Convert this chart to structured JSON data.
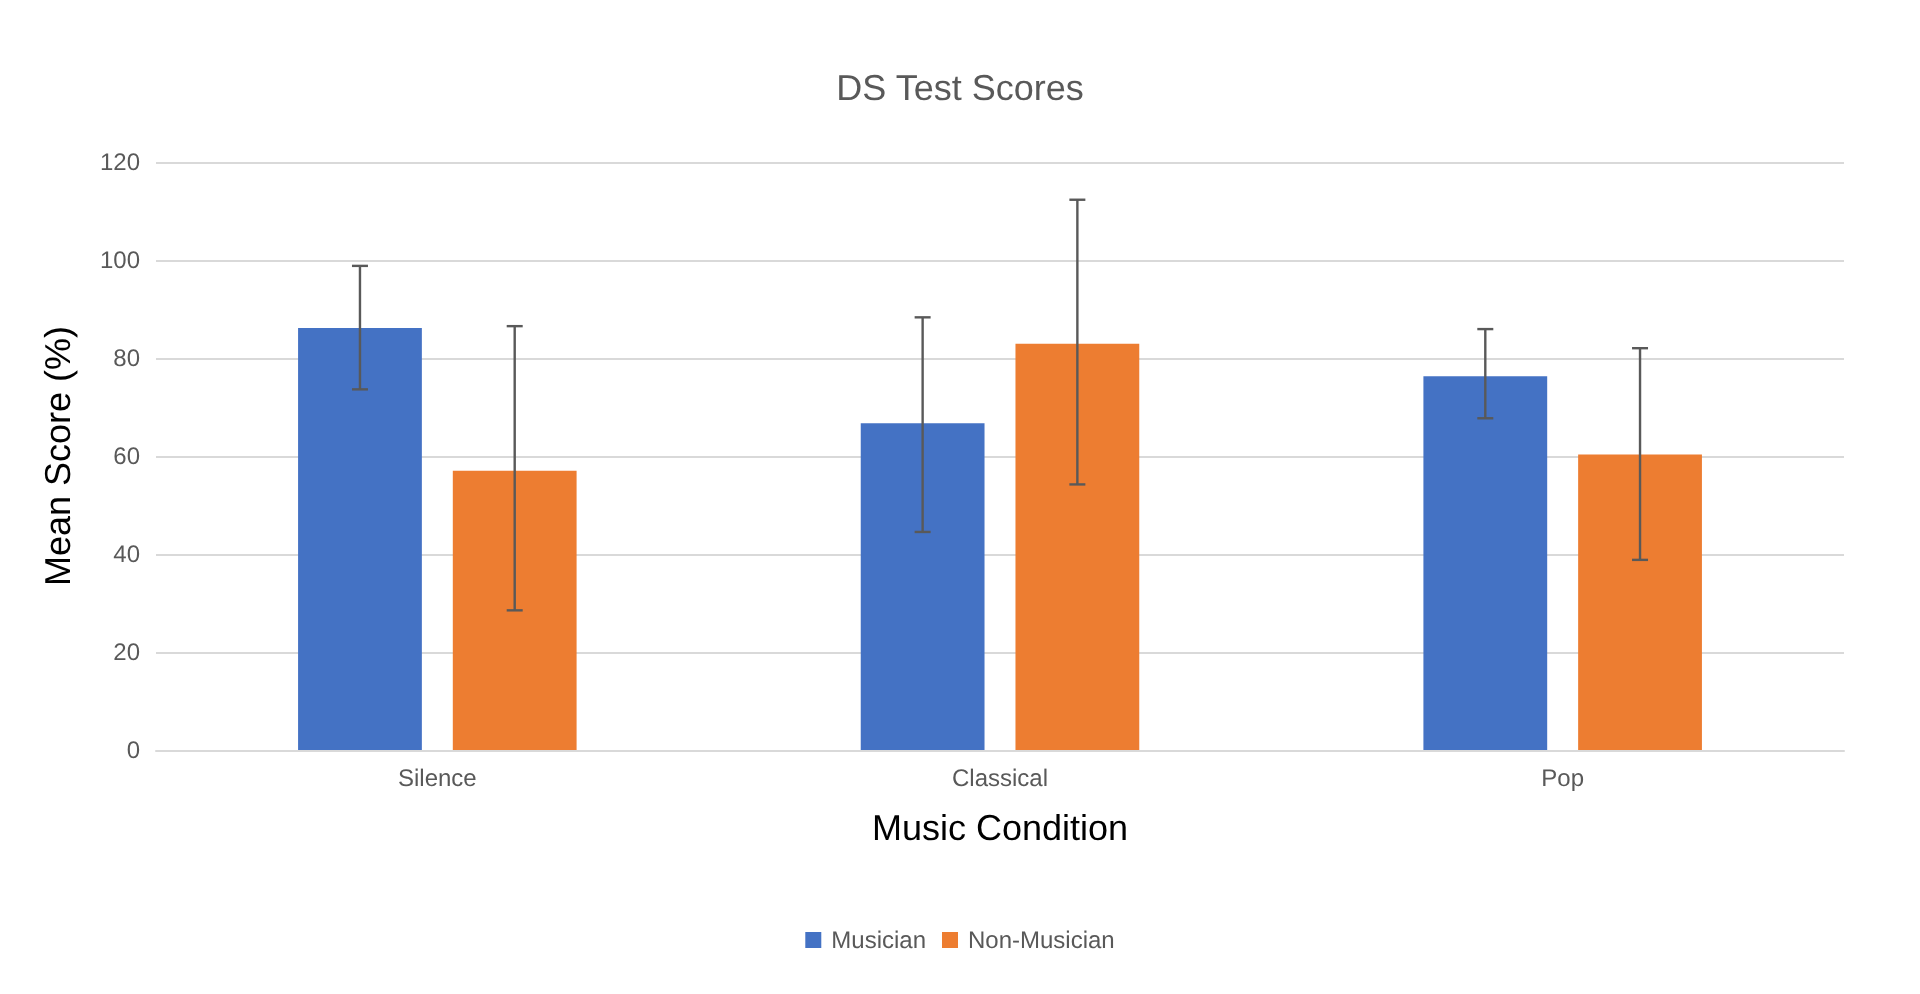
{
  "chart_data": {
    "type": "bar",
    "title": "DS Test Scores",
    "xlabel": "Music Condition",
    "ylabel": "Mean Score (%)",
    "categories": [
      "Silence",
      "Classical",
      "Pop"
    ],
    "series": [
      {
        "name": "Musician",
        "color": "#4472c4",
        "values": [
          86.1,
          66.7,
          76.3
        ],
        "errors": [
          [
            73.6,
            98.8
          ],
          [
            44.5,
            88.3
          ],
          [
            67.7,
            85.9
          ]
        ]
      },
      {
        "name": "Non-Musician",
        "color": "#ed7d31",
        "values": [
          57,
          82.9,
          60.3
        ],
        "errors": [
          [
            28.5,
            86.5
          ],
          [
            54.2,
            112.3
          ],
          [
            38.8,
            82
          ]
        ]
      }
    ],
    "ylim": [
      0,
      120
    ],
    "yticks": [
      0,
      20,
      40,
      60,
      80,
      100,
      120
    ],
    "grid": "y",
    "legend": "bottom"
  }
}
